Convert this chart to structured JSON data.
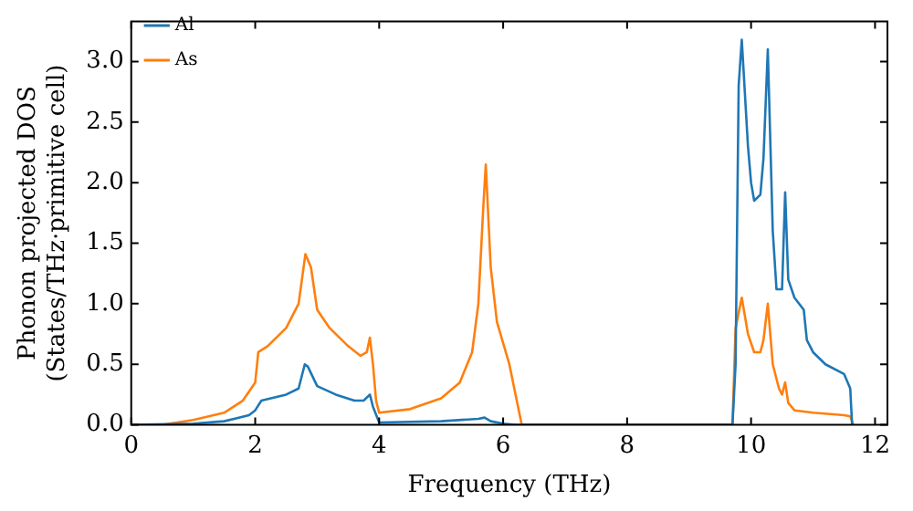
{
  "chart_data": {
    "type": "line",
    "xlabel": "Frequency (THz)",
    "ylabel": "Phonon projected DOS\n(States/THz·primitive cell)",
    "xlim": [
      0,
      12.2
    ],
    "ylim": [
      0,
      3.33
    ],
    "xticks": [
      0,
      2,
      4,
      6,
      8,
      10,
      12
    ],
    "yticks": [
      {
        "value": 0,
        "label": "0.0"
      },
      0.5,
      {
        "value": 1,
        "label": "1.0"
      },
      1.5,
      {
        "value": 2,
        "label": "2.0"
      },
      2.5,
      {
        "value": 3,
        "label": "3.0"
      }
    ],
    "grid": false,
    "legend": "top left",
    "marker": "none",
    "line_style": "solid",
    "series": [
      {
        "name": "Al",
        "color": "#1f77b4",
        "x": [
          0,
          1,
          1.5,
          1.9,
          2.0,
          2.1,
          2.5,
          2.7,
          2.8,
          2.85,
          3.0,
          3.3,
          3.6,
          3.75,
          3.85,
          3.9,
          4.0,
          5.0,
          5.6,
          5.7,
          5.8,
          6.0,
          6.2,
          9.7,
          9.75,
          9.8,
          9.85,
          9.95,
          10.0,
          10.05,
          10.15,
          10.2,
          10.27,
          10.35,
          10.41,
          10.5,
          10.55,
          10.6,
          10.7,
          10.85,
          10.9,
          11.0,
          11.2,
          11.5,
          11.6,
          11.63
        ],
        "values": [
          0,
          0.01,
          0.03,
          0.08,
          0.12,
          0.2,
          0.25,
          0.3,
          0.5,
          0.48,
          0.32,
          0.25,
          0.2,
          0.2,
          0.25,
          0.15,
          0.02,
          0.03,
          0.05,
          0.06,
          0.03,
          0.01,
          0,
          0,
          0.5,
          2.8,
          3.18,
          2.3,
          2.0,
          1.85,
          1.9,
          2.2,
          3.1,
          1.6,
          1.12,
          1.12,
          1.92,
          1.2,
          1.05,
          0.95,
          0.7,
          0.6,
          0.5,
          0.42,
          0.3,
          0
        ]
      },
      {
        "name": "As",
        "color": "#ff7f0e",
        "x": [
          0.5,
          1,
          1.5,
          1.8,
          2.0,
          2.05,
          2.2,
          2.5,
          2.7,
          2.81,
          2.9,
          3.0,
          3.2,
          3.5,
          3.7,
          3.8,
          3.85,
          3.9,
          3.95,
          4.0,
          4.5,
          5.0,
          5.3,
          5.5,
          5.6,
          5.68,
          5.72,
          5.8,
          5.9,
          6.1,
          6.3,
          9.7,
          9.75,
          9.85,
          9.95,
          10.05,
          10.15,
          10.2,
          10.27,
          10.35,
          10.45,
          10.5,
          10.55,
          10.6,
          10.7,
          11.0,
          11.5,
          11.6,
          11.65
        ],
        "values": [
          0,
          0.04,
          0.1,
          0.2,
          0.35,
          0.6,
          0.65,
          0.8,
          1.0,
          1.41,
          1.3,
          0.95,
          0.8,
          0.65,
          0.57,
          0.6,
          0.72,
          0.5,
          0.2,
          0.1,
          0.13,
          0.22,
          0.35,
          0.6,
          1.0,
          1.8,
          2.15,
          1.3,
          0.85,
          0.5,
          0,
          0,
          0.8,
          1.05,
          0.75,
          0.6,
          0.6,
          0.7,
          1.0,
          0.5,
          0.3,
          0.25,
          0.35,
          0.18,
          0.12,
          0.1,
          0.08,
          0.07,
          0
        ]
      }
    ]
  }
}
